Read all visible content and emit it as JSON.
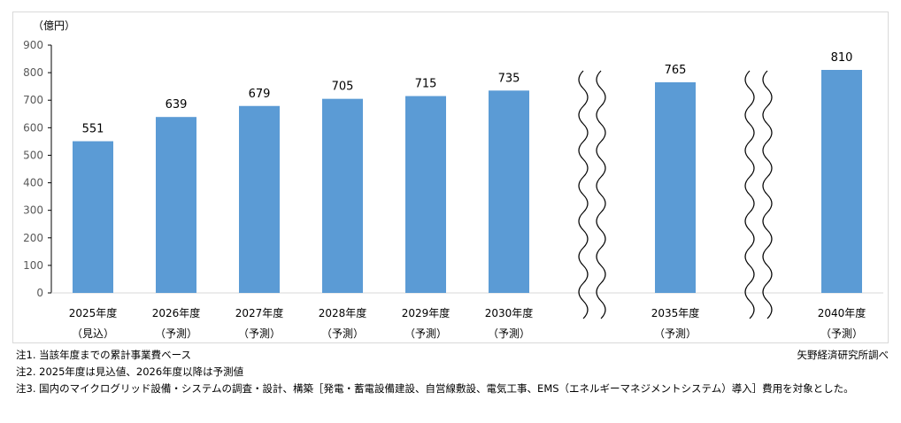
{
  "chart_data": {
    "type": "bar",
    "unit_label": "（億円）",
    "categories": [
      [
        "2025年度",
        "（見込）"
      ],
      [
        "2026年度",
        "（予測）"
      ],
      [
        "2027年度",
        "（予測）"
      ],
      [
        "2028年度",
        "（予測）"
      ],
      [
        "2029年度",
        "（予測）"
      ],
      [
        "2030年度",
        "（予測）"
      ],
      [
        "2035年度",
        "（予測）"
      ],
      [
        "2040年度",
        "（予測）"
      ]
    ],
    "values": [
      551,
      639,
      679,
      705,
      715,
      735,
      765,
      810
    ],
    "axis_breaks_before": [
      "2035年度",
      "2040年度"
    ],
    "ylim": [
      0,
      900
    ],
    "yticks": [
      0,
      100,
      200,
      300,
      400,
      500,
      600,
      700,
      800,
      900
    ],
    "grid": false,
    "bar_color": "#5b9bd5"
  },
  "notes": [
    "注1. 当該年度までの累計事業費ベース",
    "注2. 2025年度は見込値、2026年度以降は予測値",
    "注3. 国内のマイクログリッド設備・システムの調査・設計、構築［発電・蓄電設備建設、自営線敷設、電気工事、EMS（エネルギーマネジメントシステム）導入］費用を対象とした。"
  ],
  "source": "矢野経済研究所調べ"
}
